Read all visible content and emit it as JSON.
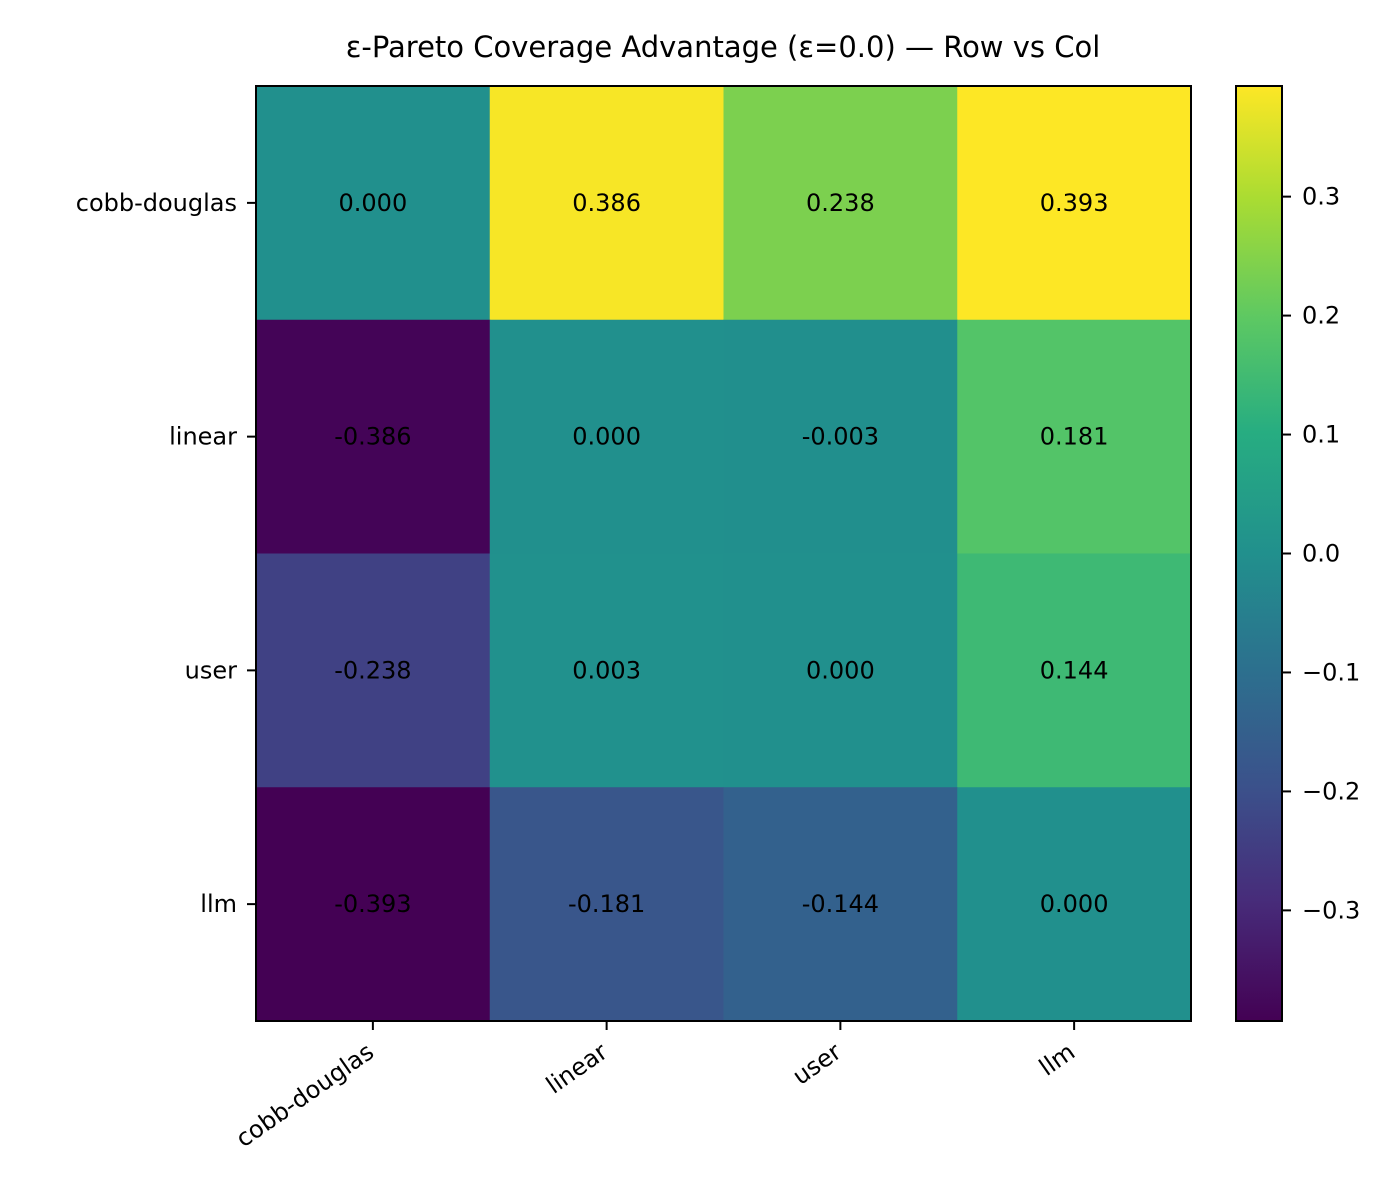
{
  "chart_data": {
    "type": "heatmap",
    "title": "ε-Pareto Coverage Advantage (ε=0.0)  —  Row vs Col",
    "rows": [
      "cobb-douglas",
      "linear",
      "user",
      "llm"
    ],
    "columns": [
      "cobb-douglas",
      "linear",
      "user",
      "llm"
    ],
    "values": [
      [
        0.0,
        0.386,
        0.238,
        0.393
      ],
      [
        -0.386,
        0.0,
        -0.003,
        0.181
      ],
      [
        -0.238,
        0.003,
        0.0,
        0.144
      ],
      [
        -0.393,
        -0.181,
        -0.144,
        0.0
      ]
    ],
    "cell_labels": [
      [
        "0.000",
        "0.386",
        "0.238",
        "0.393"
      ],
      [
        "-0.386",
        "0.000",
        "-0.003",
        "0.181"
      ],
      [
        "-0.238",
        "0.003",
        "0.000",
        "0.144"
      ],
      [
        "-0.393",
        "-0.181",
        "-0.144",
        "0.000"
      ]
    ],
    "colormap": "viridis",
    "colorbar": {
      "vmin": -0.393,
      "vmax": 0.393,
      "ticks": [
        0.3,
        0.2,
        0.1,
        0.0,
        -0.1,
        -0.2,
        -0.3
      ],
      "tick_labels": [
        "0.3",
        "0.2",
        "0.1",
        "0.0",
        "−0.1",
        "−0.2",
        "−0.3"
      ]
    },
    "xlabel": "",
    "ylabel": ""
  }
}
